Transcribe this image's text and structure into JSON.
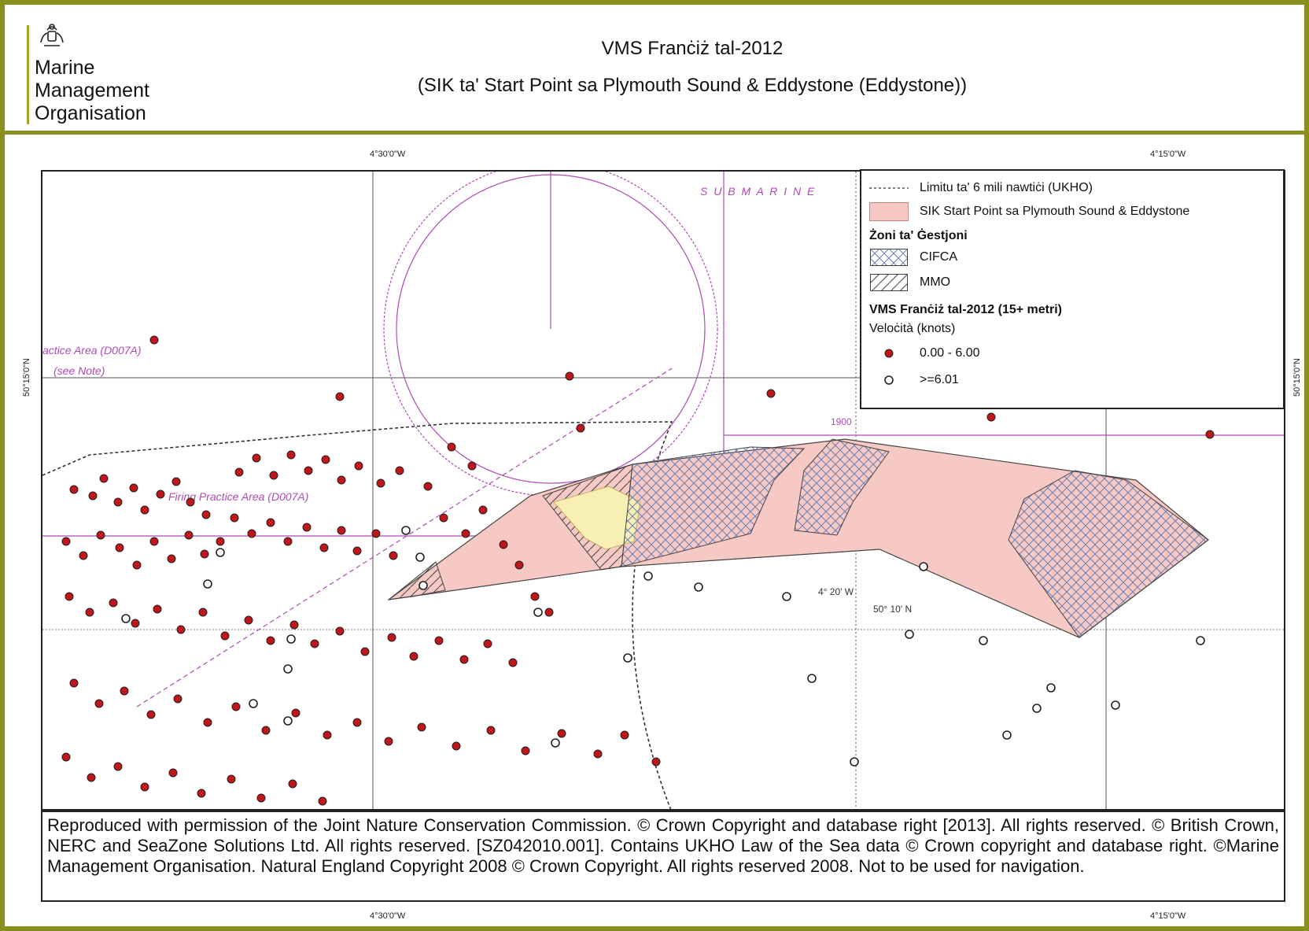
{
  "organisation": {
    "name_line1": "Marine",
    "name_line2": "Management",
    "name_line3": "Organisation"
  },
  "title": {
    "line1": "VMS Franċiż tal-2012",
    "line2": "(SIK ta' Start Point sa Plymouth Sound & Eddystone (Eddystone))"
  },
  "coordinates": {
    "top_left_lon": "4°30'0\"W",
    "top_right_lon": "4°15'0\"W",
    "bottom_left_lon": "4°30'0\"W",
    "bottom_right_lon": "4°15'0\"W",
    "left_lat": "50°15'0\"N",
    "right_lat": "50°15'0\"N"
  },
  "legend": {
    "boundary_label": "Limitu ta' 6 mili nawtiċi (UKHO)",
    "sac_label": "SIK Start Point sa Plymouth Sound & Eddystone",
    "zones_heading": "Żoni ta' Ġestjoni",
    "cifca_label": "CIFCA",
    "mmo_label": "MMO",
    "vms_heading": "VMS Franċiż tal-2012 (15+ metri)",
    "speed_heading": "Veloċità (knots)",
    "slow_label": "0.00 - 6.00",
    "fast_label": ">=6.01",
    "colors": {
      "sac_fill": "#f6c9c4",
      "cifca_hatch": "#6a7fb5",
      "slow_dot": "#c0161b",
      "fast_dot": "#ffffff",
      "boundary": "#333333"
    }
  },
  "chart_annotations": {
    "firing_area": "Firing Practice Area (D007A)",
    "practice_area": "actice Area (D007A)",
    "see_note": "(see Note)",
    "submarine": "S U B M A R I N E",
    "lat_label": "50° 10' N",
    "lon_label": "4° 20' W",
    "year_label": "1900"
  },
  "credits": {
    "text": "Reproduced with permission of the Joint Nature Conservation Commission. © Crown Copyright and database right [2013]. All rights reserved. © British Crown, NERC and SeaZone Solutions Ltd. All rights reserved. [SZ042010.001]. Contains UKHO Law of the Sea data © Crown copyright and database right. ©Marine Management Organisation. Natural England Copyright 2008 © Crown Copyright. All rights reserved 2008. Not to be used for navigation."
  }
}
